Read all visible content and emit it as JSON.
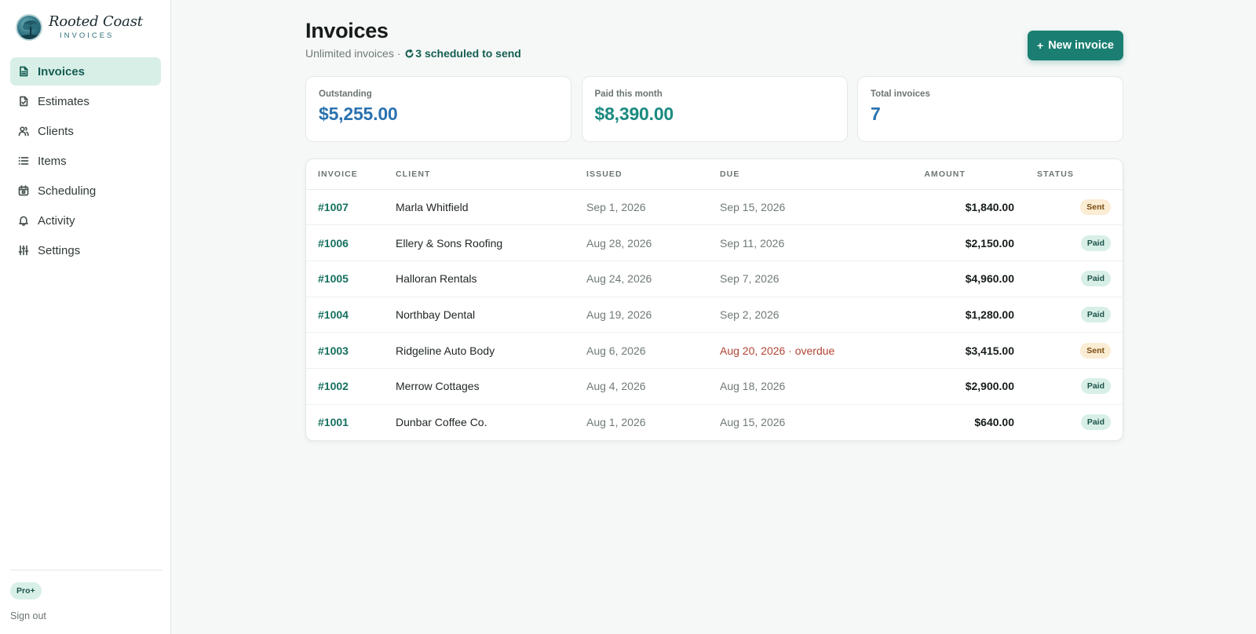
{
  "brand": {
    "name": "Rooted Coast",
    "sub": "INVOICES"
  },
  "sidebar": {
    "items": [
      {
        "label": "Invoices",
        "icon": "file-icon",
        "active": true
      },
      {
        "label": "Estimates",
        "icon": "file-check-icon",
        "active": false
      },
      {
        "label": "Clients",
        "icon": "users-icon",
        "active": false
      },
      {
        "label": "Items",
        "icon": "list-icon",
        "active": false
      },
      {
        "label": "Scheduling",
        "icon": "calendar-icon",
        "active": false
      },
      {
        "label": "Activity",
        "icon": "bell-icon",
        "active": false
      },
      {
        "label": "Settings",
        "icon": "sliders-icon",
        "active": false
      }
    ],
    "plan": "Pro+",
    "signout": "Sign out"
  },
  "header": {
    "title": "Invoices",
    "subtitle_prefix": "Unlimited invoices ·",
    "scheduled": "3 scheduled to send",
    "new_button": "New invoice"
  },
  "stats": [
    {
      "label": "Outstanding",
      "value": "$5,255.00",
      "tone": "blue"
    },
    {
      "label": "Paid this month",
      "value": "$8,390.00",
      "tone": "teal"
    },
    {
      "label": "Total invoices",
      "value": "7",
      "tone": "navy"
    }
  ],
  "table": {
    "columns": [
      "INVOICE",
      "CLIENT",
      "ISSUED",
      "DUE",
      "AMOUNT",
      "STATUS"
    ],
    "rows": [
      {
        "invoice": "#1007",
        "client": "Marla Whitfield",
        "issued": "Sep 1, 2026",
        "due": "Sep 15, 2026",
        "overdue": false,
        "amount": "$1,840.00",
        "status": "Sent"
      },
      {
        "invoice": "#1006",
        "client": "Ellery & Sons Roofing",
        "issued": "Aug 28, 2026",
        "due": "Sep 11, 2026",
        "overdue": false,
        "amount": "$2,150.00",
        "status": "Paid"
      },
      {
        "invoice": "#1005",
        "client": "Halloran Rentals",
        "issued": "Aug 24, 2026",
        "due": "Sep 7, 2026",
        "overdue": false,
        "amount": "$4,960.00",
        "status": "Paid"
      },
      {
        "invoice": "#1004",
        "client": "Northbay Dental",
        "issued": "Aug 19, 2026",
        "due": "Sep 2, 2026",
        "overdue": false,
        "amount": "$1,280.00",
        "status": "Paid"
      },
      {
        "invoice": "#1003",
        "client": "Ridgeline Auto Body",
        "issued": "Aug 6, 2026",
        "due": "Aug 20, 2026 · overdue",
        "overdue": true,
        "amount": "$3,415.00",
        "status": "Sent"
      },
      {
        "invoice": "#1002",
        "client": "Merrow Cottages",
        "issued": "Aug 4, 2026",
        "due": "Aug 18, 2026",
        "overdue": false,
        "amount": "$2,900.00",
        "status": "Paid"
      },
      {
        "invoice": "#1001",
        "client": "Dunbar Coffee Co.",
        "issued": "Aug 1, 2026",
        "due": "Aug 15, 2026",
        "overdue": false,
        "amount": "$640.00",
        "status": "Paid"
      }
    ]
  },
  "colors": {
    "accent": "#1a7f72",
    "brand_teal": "#155e52",
    "overdue": "#b24434",
    "stat_blue": "#2a72b0"
  }
}
